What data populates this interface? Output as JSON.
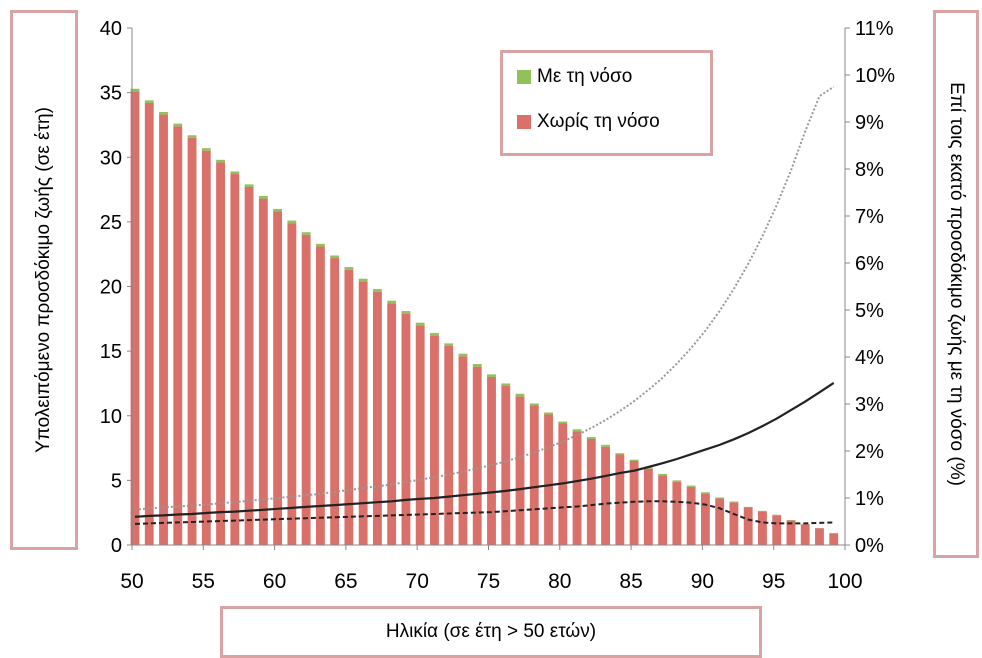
{
  "chart_data": {
    "type": "bar",
    "title": "",
    "xlabel": "Ηλικία (σε έτη > 50 ετών)",
    "ylabel_left": "Υπολειπόμενο προσδόκιμο ζωής (σε έτη)",
    "ylabel_right": "Επί τοις εκατό προσδόκιμο ζωής με τη νόσο (%)",
    "x_range": [
      50,
      100
    ],
    "x_ticks": [
      "50",
      "55",
      "60",
      "65",
      "70",
      "75",
      "80",
      "85",
      "90",
      "95",
      "100"
    ],
    "y_left_range": [
      0,
      40
    ],
    "y_left_ticks": [
      "0",
      "5",
      "10",
      "15",
      "20",
      "25",
      "30",
      "35",
      "40"
    ],
    "y_right_range": [
      0,
      11
    ],
    "y_right_ticks": [
      "0%",
      "1%",
      "2%",
      "3%",
      "4%",
      "5%",
      "6%",
      "7%",
      "8%",
      "9%",
      "10%",
      "11%"
    ],
    "grid": false,
    "legend_position": "top-center",
    "ages": [
      50,
      51,
      52,
      53,
      54,
      55,
      56,
      57,
      58,
      59,
      60,
      61,
      62,
      63,
      64,
      65,
      66,
      67,
      68,
      69,
      70,
      71,
      72,
      73,
      74,
      75,
      76,
      77,
      78,
      79,
      80,
      81,
      82,
      83,
      84,
      85,
      86,
      87,
      88,
      89,
      90,
      91,
      92,
      93,
      94,
      95,
      96,
      97,
      98,
      99
    ],
    "series": [
      {
        "name": "Με τη νόσο",
        "color": "#92c05a",
        "values": [
          0.2,
          0.2,
          0.2,
          0.2,
          0.2,
          0.2,
          0.2,
          0.2,
          0.2,
          0.2,
          0.2,
          0.2,
          0.2,
          0.2,
          0.2,
          0.2,
          0.2,
          0.2,
          0.2,
          0.2,
          0.2,
          0.2,
          0.2,
          0.2,
          0.2,
          0.2,
          0.2,
          0.2,
          0.15,
          0.15,
          0.15,
          0.15,
          0.15,
          0.15,
          0.1,
          0.1,
          0.1,
          0.1,
          0.1,
          0.1,
          0.08,
          0.07,
          0.06,
          0.05,
          0.04,
          0.04,
          0.03,
          0.03,
          0.02,
          0.02
        ]
      },
      {
        "name": "Χωρίς τη νόσο",
        "color": "#d9706a",
        "values": [
          35.1,
          34.2,
          33.3,
          32.4,
          31.5,
          30.5,
          29.6,
          28.7,
          27.7,
          26.8,
          25.8,
          24.9,
          24.0,
          23.1,
          22.2,
          21.3,
          20.4,
          19.6,
          18.7,
          17.9,
          17.0,
          16.2,
          15.4,
          14.6,
          13.8,
          13.0,
          12.3,
          11.5,
          10.8,
          10.1,
          9.4,
          8.8,
          8.2,
          7.6,
          7.0,
          6.5,
          5.9,
          5.4,
          4.9,
          4.5,
          4.0,
          3.6,
          3.3,
          2.9,
          2.6,
          2.3,
          1.9,
          1.6,
          1.3,
          0.9
        ]
      }
    ],
    "lines": [
      {
        "style": "solid",
        "color": "#222222",
        "values": [
          0.6,
          0.62,
          0.63,
          0.65,
          0.66,
          0.68,
          0.7,
          0.71,
          0.73,
          0.75,
          0.77,
          0.79,
          0.81,
          0.83,
          0.85,
          0.87,
          0.89,
          0.91,
          0.93,
          0.96,
          0.98,
          1.0,
          1.03,
          1.06,
          1.09,
          1.12,
          1.15,
          1.19,
          1.23,
          1.27,
          1.31,
          1.36,
          1.41,
          1.47,
          1.53,
          1.58,
          1.66,
          1.74,
          1.83,
          1.93,
          2.03,
          2.13,
          2.25,
          2.38,
          2.53,
          2.69,
          2.87,
          3.05,
          3.25,
          3.45
        ]
      },
      {
        "style": "dashed",
        "color": "#222222",
        "values": [
          0.45,
          0.46,
          0.47,
          0.48,
          0.49,
          0.5,
          0.51,
          0.52,
          0.53,
          0.54,
          0.55,
          0.56,
          0.57,
          0.58,
          0.59,
          0.6,
          0.61,
          0.62,
          0.63,
          0.64,
          0.65,
          0.66,
          0.67,
          0.68,
          0.69,
          0.7,
          0.72,
          0.74,
          0.76,
          0.78,
          0.8,
          0.82,
          0.85,
          0.88,
          0.9,
          0.92,
          0.93,
          0.93,
          0.92,
          0.9,
          0.86,
          0.78,
          0.66,
          0.54,
          0.48,
          0.46,
          0.46,
          0.46,
          0.47,
          0.48
        ]
      },
      {
        "style": "dotted",
        "color": "#999999",
        "values": [
          0.75,
          0.78,
          0.8,
          0.82,
          0.84,
          0.86,
          0.89,
          0.91,
          0.94,
          0.97,
          1.0,
          1.03,
          1.06,
          1.09,
          1.13,
          1.17,
          1.21,
          1.25,
          1.29,
          1.34,
          1.39,
          1.44,
          1.5,
          1.56,
          1.63,
          1.7,
          1.78,
          1.87,
          1.97,
          2.08,
          2.2,
          2.34,
          2.49,
          2.66,
          2.85,
          3.06,
          3.3,
          3.56,
          3.86,
          4.19,
          4.56,
          4.98,
          5.45,
          5.98,
          6.57,
          7.23,
          7.97,
          8.8,
          9.55,
          9.75
        ]
      }
    ]
  }
}
